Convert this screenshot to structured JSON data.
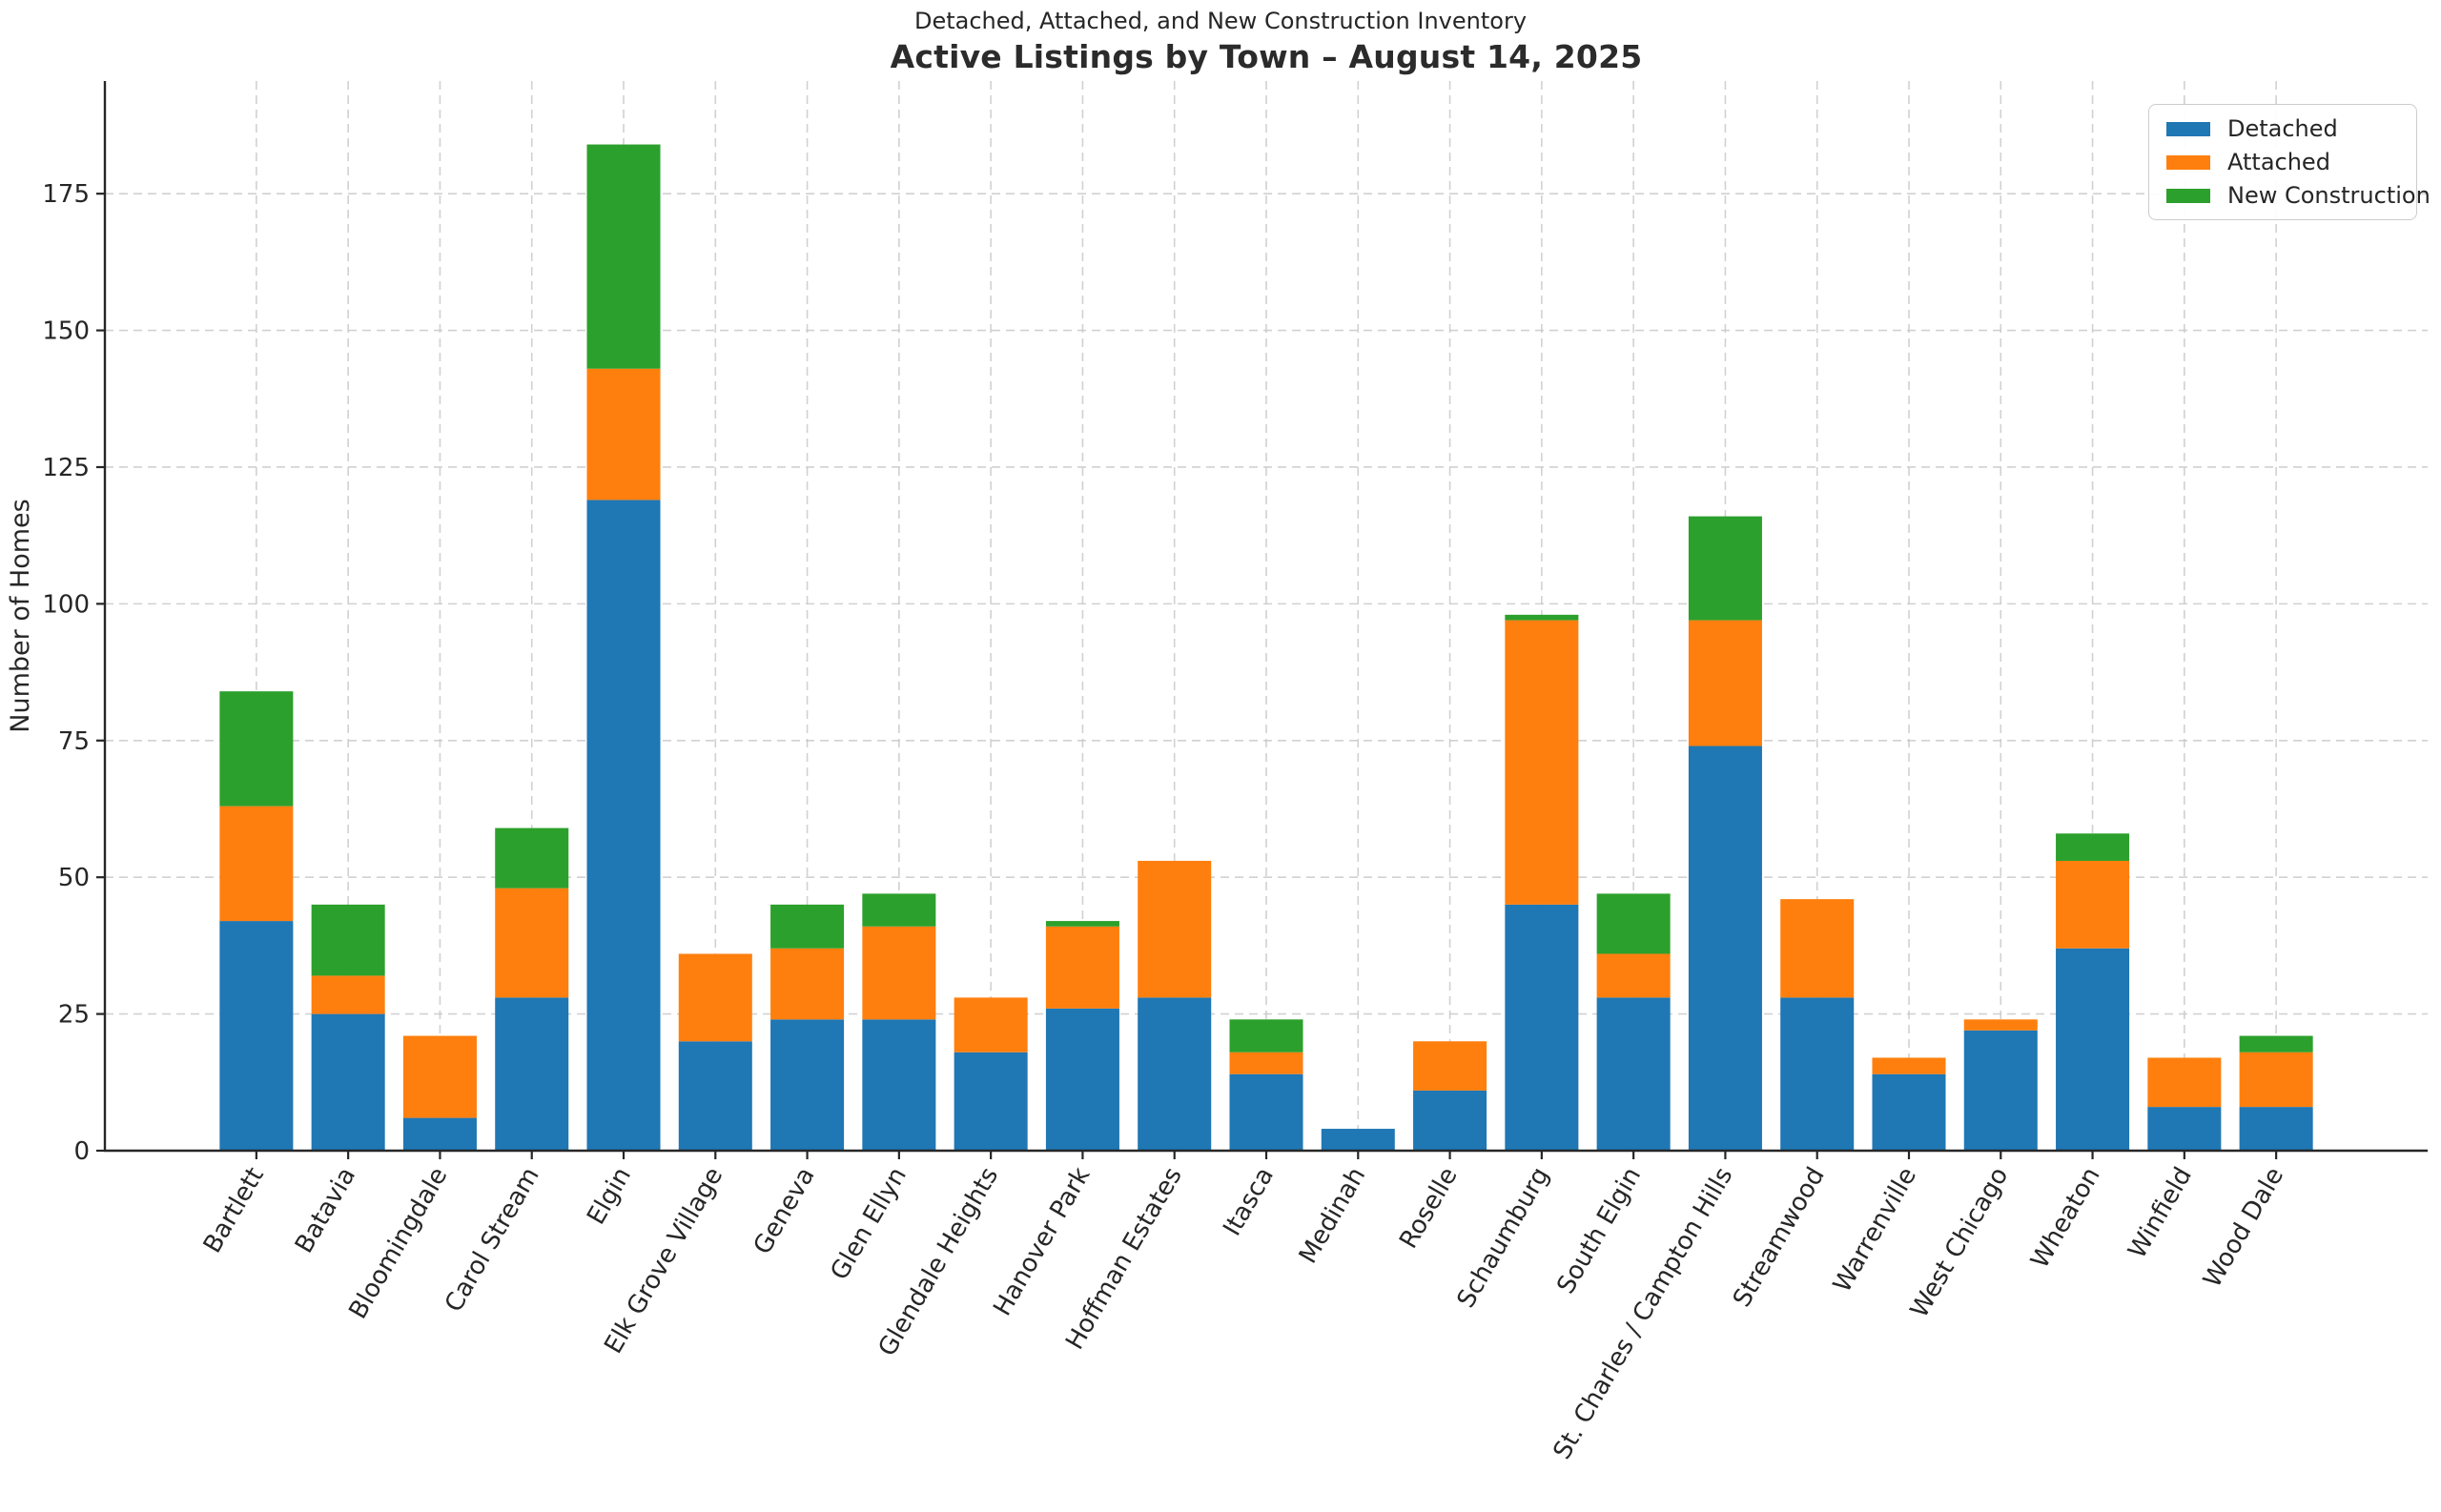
{
  "chart_data": {
    "type": "bar",
    "stacked": true,
    "suptitle": "Detached, Attached, and New Construction Inventory",
    "title": "Active Listings by Town – August 14, 2025",
    "xlabel": "",
    "ylabel": "Number of Homes",
    "yticks": [
      0,
      25,
      50,
      75,
      100,
      125,
      150,
      175
    ],
    "ylim": [
      0,
      195.6
    ],
    "grid": true,
    "grid_style": "dashed",
    "legend_position": "upper right",
    "categories": [
      "Bartlett",
      "Batavia",
      "Bloomingdale",
      "Carol Stream",
      "Elgin",
      "Elk Grove Village",
      "Geneva",
      "Glen Ellyn",
      "Glendale Heights",
      "Hanover Park",
      "Hoffman Estates",
      "Itasca",
      "Medinah",
      "Roselle",
      "Schaumburg",
      "South Elgin",
      "St. Charles / Campton Hills",
      "Streamwood",
      "Warrenville",
      "West Chicago",
      "Wheaton",
      "Winfield",
      "Wood Dale"
    ],
    "series": [
      {
        "name": "Detached",
        "color": "#1f77b4",
        "values": [
          42,
          25,
          6,
          28,
          119,
          20,
          24,
          24,
          18,
          26,
          28,
          14,
          4,
          11,
          45,
          28,
          74,
          28,
          14,
          22,
          37,
          8,
          8
        ]
      },
      {
        "name": "Attached",
        "color": "#ff7f0e",
        "values": [
          21,
          7,
          15,
          20,
          24,
          16,
          13,
          17,
          10,
          15,
          25,
          4,
          0,
          9,
          52,
          8,
          23,
          18,
          3,
          2,
          16,
          9,
          10
        ]
      },
      {
        "name": "New Construction",
        "color": "#2ca02c",
        "values": [
          21,
          13,
          0,
          11,
          41,
          0,
          8,
          6,
          0,
          1,
          0,
          6,
          0,
          0,
          1,
          11,
          19,
          0,
          0,
          0,
          5,
          0,
          3
        ]
      }
    ],
    "totals": [
      84,
      45,
      21,
      59,
      184,
      36,
      45,
      47,
      28,
      42,
      53,
      24,
      4,
      20,
      98,
      47,
      116,
      46,
      17,
      24,
      58,
      17,
      21
    ]
  },
  "axis_colors": {
    "spine": "#262626",
    "tick_label": "#262626",
    "grid": "#c9c9c9"
  }
}
